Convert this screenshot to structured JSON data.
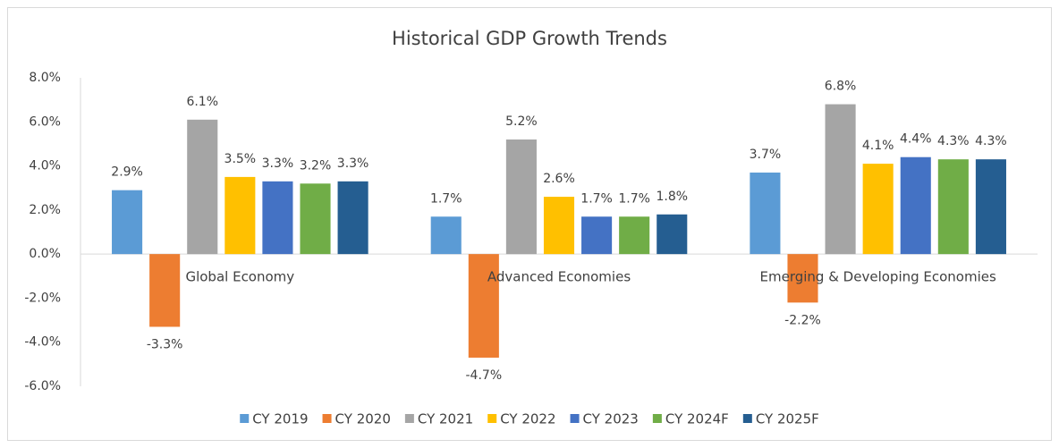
{
  "chart_data": {
    "type": "bar",
    "title": "Historical GDP Growth Trends",
    "categories": [
      "Global Economy",
      "Advanced Economies",
      "Emerging & Developing Economies"
    ],
    "series": [
      {
        "name": "CY 2019",
        "color": "#5b9bd5",
        "values": [
          2.9,
          1.7,
          3.7
        ],
        "value_labels": [
          "2.9%",
          "1.7%",
          "3.7%"
        ]
      },
      {
        "name": "CY 2020",
        "color": "#ed7d31",
        "values": [
          -3.3,
          -4.7,
          -2.2
        ],
        "value_labels": [
          "-3.3%",
          "-4.7%",
          "-2.2%"
        ]
      },
      {
        "name": "CY 2021",
        "color": "#a5a5a5",
        "values": [
          6.1,
          5.2,
          6.8
        ],
        "value_labels": [
          "6.1%",
          "5.2%",
          "6.8%"
        ]
      },
      {
        "name": "CY 2022",
        "color": "#ffc000",
        "values": [
          3.5,
          2.6,
          4.1
        ],
        "value_labels": [
          "3.5%",
          "2.6%",
          "4.1%"
        ]
      },
      {
        "name": "CY 2023",
        "color": "#4472c4",
        "values": [
          3.3,
          1.7,
          4.4
        ],
        "value_labels": [
          "3.3%",
          "1.7%",
          "4.4%"
        ]
      },
      {
        "name": "CY 2024F",
        "color": "#70ad47",
        "values": [
          3.2,
          1.7,
          4.3
        ],
        "value_labels": [
          "3.2%",
          "1.7%",
          "4.3%"
        ]
      },
      {
        "name": "CY 2025F",
        "color": "#255e91",
        "values": [
          3.3,
          1.8,
          4.3
        ],
        "value_labels": [
          "3.3%",
          "1.8%",
          "4.3%"
        ]
      }
    ],
    "ylim": [
      -6,
      8
    ],
    "yticks": [
      {
        "value": -6,
        "label": "-6.0%"
      },
      {
        "value": -4,
        "label": "-4.0%"
      },
      {
        "value": -2,
        "label": "-2.0%"
      },
      {
        "value": 0,
        "label": "0.0%"
      },
      {
        "value": 2,
        "label": "2.0%"
      },
      {
        "value": 4,
        "label": "4.0%"
      },
      {
        "value": 6,
        "label": "6.0%"
      },
      {
        "value": 8,
        "label": "8.0%"
      }
    ],
    "grid": false,
    "legend": "bottom"
  }
}
